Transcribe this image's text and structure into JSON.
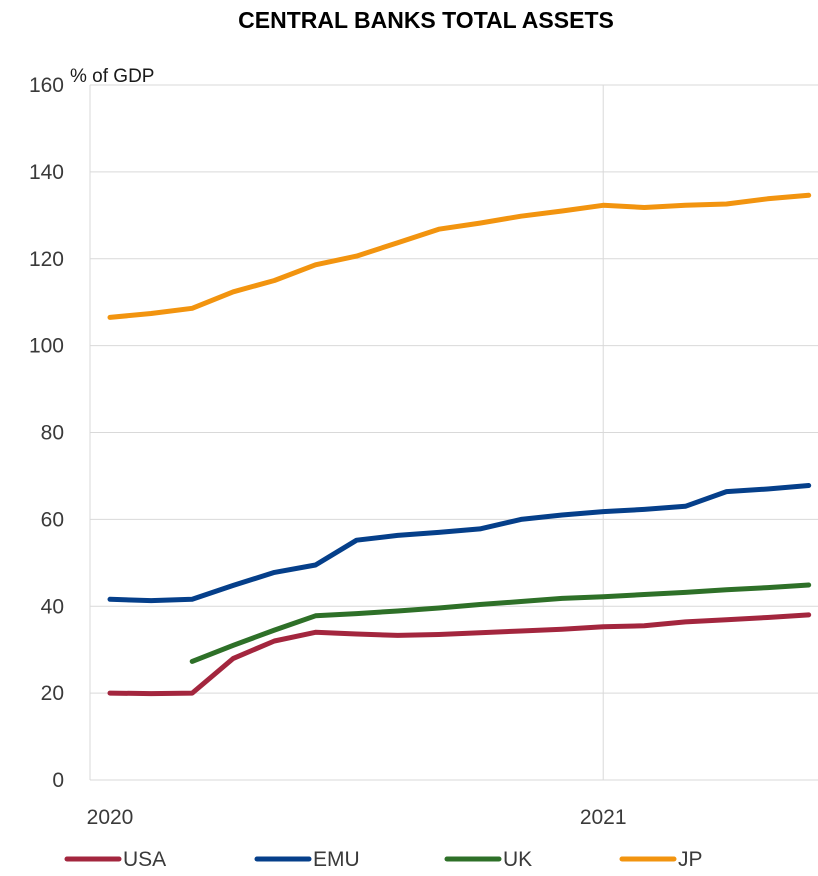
{
  "chart_data": {
    "type": "line",
    "title": "CENTRAL BANKS TOTAL ASSETS",
    "ylabel": "% of GDP",
    "ylim": [
      0,
      160
    ],
    "yticks": [
      "0",
      "20",
      "40",
      "60",
      "80",
      "100",
      "120",
      "140",
      "160"
    ],
    "xticks": [
      "2020",
      "2021"
    ],
    "x": [
      "2020-01",
      "2020-02",
      "2020-03",
      "2020-04",
      "2020-05",
      "2020-06",
      "2020-07",
      "2020-08",
      "2020-09",
      "2020-10",
      "2020-11",
      "2020-12",
      "2021-01",
      "2021-02",
      "2021-03",
      "2021-04",
      "2021-05",
      "2021-06"
    ],
    "grid": true,
    "legend_position": "bottom",
    "series": [
      {
        "name": "USA",
        "color": "#a3263e",
        "values": [
          20.0,
          19.9,
          20.0,
          28.0,
          32.0,
          34.0,
          33.6,
          33.3,
          33.5,
          33.9,
          34.3,
          34.7,
          35.3,
          35.5,
          36.4,
          36.9,
          37.4,
          38.0
        ]
      },
      {
        "name": "EMU",
        "color": "#053f8a",
        "values": [
          41.6,
          41.3,
          41.6,
          44.8,
          47.8,
          49.5,
          55.2,
          56.3,
          57.0,
          57.8,
          60.0,
          61.0,
          61.8,
          62.3,
          63.0,
          66.4,
          67.0,
          67.8
        ]
      },
      {
        "name": "UK",
        "color": "#2e7028",
        "values": [
          null,
          null,
          27.3,
          31.0,
          34.5,
          37.8,
          38.3,
          38.9,
          39.6,
          40.4,
          41.1,
          41.8,
          42.2,
          42.7,
          43.2,
          43.8,
          44.3,
          44.9
        ]
      },
      {
        "name": "JP",
        "color": "#f2940f",
        "values": [
          106.5,
          107.4,
          108.6,
          112.4,
          115.0,
          118.6,
          120.6,
          123.7,
          126.8,
          128.2,
          129.8,
          131.0,
          132.3,
          131.8,
          132.3,
          132.6,
          133.8,
          134.6
        ]
      }
    ]
  }
}
